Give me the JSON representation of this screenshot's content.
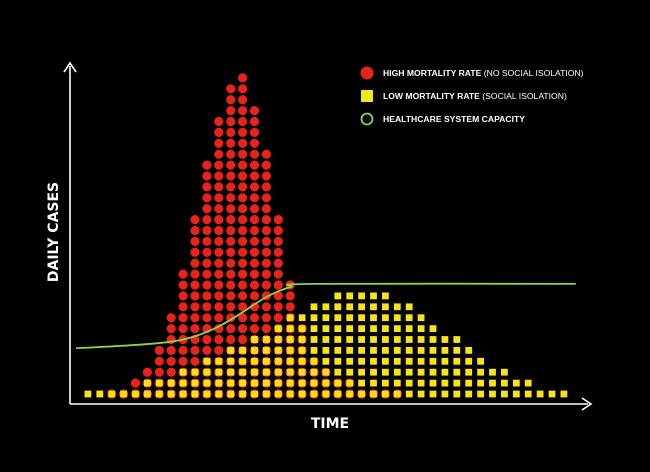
{
  "chart_data": {
    "type": "area",
    "xlabel": "TIME",
    "ylabel": "DAILY CASES",
    "title": "",
    "x_units": "time steps (one per marker column)",
    "y_units": "markers per column",
    "xlim": [
      0,
      42
    ],
    "ylim": [
      0,
      30
    ],
    "legend_position": "top-right",
    "legend": [
      {
        "key": "high",
        "label_bold": "HIGH MORTALITY RATE",
        "label_light": " (NO SOCIAL ISOLATION)",
        "marker": "circle",
        "color": "#e8231a"
      },
      {
        "key": "low",
        "label_bold": "LOW MORTALITY RATE",
        "label_light": " (SOCIAL ISOLATION)",
        "marker": "square",
        "color": "#f7e31a"
      },
      {
        "key": "capacity",
        "label_bold": "HEALTHCARE SYSTEM CAPACITY",
        "label_light": "",
        "marker": "ring",
        "color": "#8fd14a"
      }
    ],
    "series": [
      {
        "name": "HIGH MORTALITY RATE (NO SOCIAL ISOLATION)",
        "marker": "circle",
        "color": "#e8231a",
        "x": [
          3,
          4,
          5,
          6,
          7,
          8,
          9,
          10,
          11,
          12,
          13,
          14,
          15,
          16,
          17,
          18,
          19,
          20,
          21,
          22,
          23,
          24,
          25,
          26,
          27
        ],
        "values": [
          1,
          1,
          2,
          3,
          5,
          8,
          12,
          17,
          22,
          26,
          29,
          30,
          27,
          23,
          17,
          11,
          7,
          4,
          3,
          2,
          2,
          1,
          1,
          1,
          1
        ]
      },
      {
        "name": "LOW MORTALITY RATE (SOCIAL ISOLATION)",
        "marker": "square",
        "color": "#f7e31a",
        "x": [
          1,
          2,
          3,
          4,
          5,
          6,
          7,
          8,
          9,
          10,
          11,
          12,
          13,
          14,
          15,
          16,
          17,
          18,
          19,
          20,
          21,
          22,
          23,
          24,
          25,
          26,
          27,
          28,
          29,
          30,
          31,
          32,
          33,
          34,
          35,
          36,
          37,
          38,
          39,
          40,
          41
        ],
        "values": [
          1,
          1,
          1,
          1,
          1,
          2,
          2,
          2,
          3,
          3,
          4,
          4,
          5,
          5,
          6,
          6,
          7,
          8,
          8,
          9,
          9,
          10,
          10,
          10,
          10,
          10,
          9,
          9,
          8,
          7,
          6,
          6,
          5,
          4,
          3,
          3,
          2,
          2,
          1,
          1,
          1
        ]
      },
      {
        "name": "HEALTHCARE SYSTEM CAPACITY",
        "type": "line",
        "color": "#8fd14a",
        "x": [
          0,
          5,
          8,
          10,
          12,
          14,
          16,
          18,
          20,
          42
        ],
        "values": [
          5.2,
          5.5,
          5.8,
          6.3,
          7.2,
          8.5,
          9.9,
          10.8,
          11.1,
          11.1
        ]
      }
    ]
  }
}
